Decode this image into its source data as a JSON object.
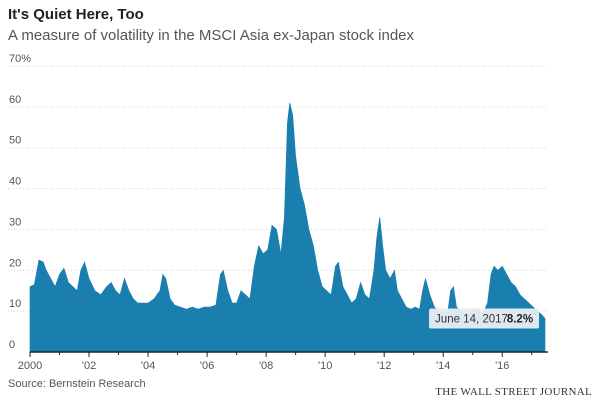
{
  "header": {
    "title": "It's Quiet Here, Too",
    "subtitle": "A measure of volatility in the MSCI Asia ex-Japan stock index"
  },
  "footer": {
    "source": "Source: Bernstein Research",
    "brand": "THE WALL STREET JOURNAL"
  },
  "colors": {
    "area": "#1a7fae",
    "grid": "#d3d3d3",
    "axis": "#555555",
    "callout_bg": "#e8eef2"
  },
  "chart_data": {
    "type": "area",
    "title": "It's Quiet Here, Too",
    "subtitle": "A measure of volatility in the MSCI Asia ex-Japan stock index",
    "xlabel": "",
    "ylabel": "",
    "ylim": [
      0,
      70
    ],
    "xlim": [
      2000,
      2017.55
    ],
    "grid": true,
    "y_ticks": [
      {
        "value": 0,
        "label": "0"
      },
      {
        "value": 10,
        "label": "10"
      },
      {
        "value": 20,
        "label": "20"
      },
      {
        "value": 30,
        "label": "30"
      },
      {
        "value": 40,
        "label": "40"
      },
      {
        "value": 50,
        "label": "50"
      },
      {
        "value": 60,
        "label": "60"
      },
      {
        "value": 70,
        "label": "70%"
      }
    ],
    "x_ticks": [
      {
        "value": 2000,
        "label": "2000"
      },
      {
        "value": 2002,
        "label": "'02"
      },
      {
        "value": 2004,
        "label": "'04"
      },
      {
        "value": 2006,
        "label": "'06"
      },
      {
        "value": 2008,
        "label": "'08"
      },
      {
        "value": 2010,
        "label": "'10"
      },
      {
        "value": 2012,
        "label": "'12"
      },
      {
        "value": 2014,
        "label": "'14"
      },
      {
        "value": 2016,
        "label": "'16"
      }
    ],
    "series": [
      {
        "points": [
          [
            2000.0,
            16
          ],
          [
            2000.15,
            16.5
          ],
          [
            2000.3,
            22.5
          ],
          [
            2000.45,
            22
          ],
          [
            2000.55,
            20
          ],
          [
            2000.7,
            18
          ],
          [
            2000.85,
            16
          ],
          [
            2001.0,
            19
          ],
          [
            2001.15,
            20.5
          ],
          [
            2001.3,
            17
          ],
          [
            2001.45,
            16
          ],
          [
            2001.6,
            15
          ],
          [
            2001.72,
            20
          ],
          [
            2001.85,
            22
          ],
          [
            2002.0,
            18
          ],
          [
            2002.2,
            15
          ],
          [
            2002.4,
            14
          ],
          [
            2002.6,
            16
          ],
          [
            2002.75,
            17
          ],
          [
            2002.9,
            15
          ],
          [
            2003.05,
            14
          ],
          [
            2003.2,
            18
          ],
          [
            2003.35,
            15
          ],
          [
            2003.5,
            13
          ],
          [
            2003.65,
            12
          ],
          [
            2003.85,
            12
          ],
          [
            2004.0,
            12
          ],
          [
            2004.2,
            13
          ],
          [
            2004.4,
            15
          ],
          [
            2004.5,
            19
          ],
          [
            2004.6,
            18
          ],
          [
            2004.75,
            13
          ],
          [
            2004.9,
            11.5
          ],
          [
            2005.1,
            11
          ],
          [
            2005.3,
            10.5
          ],
          [
            2005.5,
            11
          ],
          [
            2005.7,
            10.5
          ],
          [
            2005.9,
            11
          ],
          [
            2006.1,
            11
          ],
          [
            2006.3,
            11.5
          ],
          [
            2006.45,
            19
          ],
          [
            2006.55,
            20
          ],
          [
            2006.7,
            15
          ],
          [
            2006.85,
            12
          ],
          [
            2007.0,
            12
          ],
          [
            2007.15,
            15
          ],
          [
            2007.3,
            14
          ],
          [
            2007.45,
            13
          ],
          [
            2007.6,
            21
          ],
          [
            2007.75,
            26
          ],
          [
            2007.9,
            24
          ],
          [
            2008.05,
            25
          ],
          [
            2008.2,
            31
          ],
          [
            2008.35,
            30
          ],
          [
            2008.5,
            24
          ],
          [
            2008.62,
            33
          ],
          [
            2008.72,
            56
          ],
          [
            2008.8,
            61
          ],
          [
            2008.9,
            58
          ],
          [
            2009.0,
            48
          ],
          [
            2009.15,
            40
          ],
          [
            2009.3,
            36
          ],
          [
            2009.45,
            30
          ],
          [
            2009.6,
            26
          ],
          [
            2009.75,
            20
          ],
          [
            2009.9,
            16
          ],
          [
            2010.05,
            15
          ],
          [
            2010.2,
            14
          ],
          [
            2010.35,
            21
          ],
          [
            2010.45,
            22
          ],
          [
            2010.6,
            16
          ],
          [
            2010.75,
            14
          ],
          [
            2010.9,
            12
          ],
          [
            2011.05,
            13
          ],
          [
            2011.2,
            17
          ],
          [
            2011.35,
            14
          ],
          [
            2011.5,
            13
          ],
          [
            2011.65,
            20
          ],
          [
            2011.75,
            28
          ],
          [
            2011.85,
            33
          ],
          [
            2011.95,
            26
          ],
          [
            2012.05,
            20
          ],
          [
            2012.2,
            18
          ],
          [
            2012.35,
            20
          ],
          [
            2012.45,
            15
          ],
          [
            2012.6,
            13
          ],
          [
            2012.75,
            11
          ],
          [
            2012.9,
            10.5
          ],
          [
            2013.05,
            11
          ],
          [
            2013.2,
            10.5
          ],
          [
            2013.3,
            15
          ],
          [
            2013.4,
            18
          ],
          [
            2013.55,
            14
          ],
          [
            2013.7,
            11
          ],
          [
            2013.85,
            10
          ],
          [
            2014.0,
            10
          ],
          [
            2014.15,
            9.5
          ],
          [
            2014.25,
            15
          ],
          [
            2014.35,
            16
          ],
          [
            2014.45,
            11
          ],
          [
            2014.6,
            10
          ],
          [
            2014.75,
            9.5
          ],
          [
            2014.9,
            10
          ],
          [
            2015.05,
            10.5
          ],
          [
            2015.2,
            10
          ],
          [
            2015.35,
            9.5
          ],
          [
            2015.5,
            12
          ],
          [
            2015.62,
            19
          ],
          [
            2015.72,
            21
          ],
          [
            2015.85,
            20
          ],
          [
            2016.0,
            21
          ],
          [
            2016.15,
            19
          ],
          [
            2016.3,
            17
          ],
          [
            2016.45,
            16
          ],
          [
            2016.6,
            14
          ],
          [
            2016.75,
            13
          ],
          [
            2016.9,
            12
          ],
          [
            2017.05,
            11
          ],
          [
            2017.2,
            10
          ],
          [
            2017.35,
            9
          ],
          [
            2017.45,
            8.2
          ]
        ]
      }
    ],
    "annotation": {
      "label": "June 14, 2017",
      "value_label": "8.2%",
      "x": 2017.45,
      "y": 8.2
    }
  }
}
